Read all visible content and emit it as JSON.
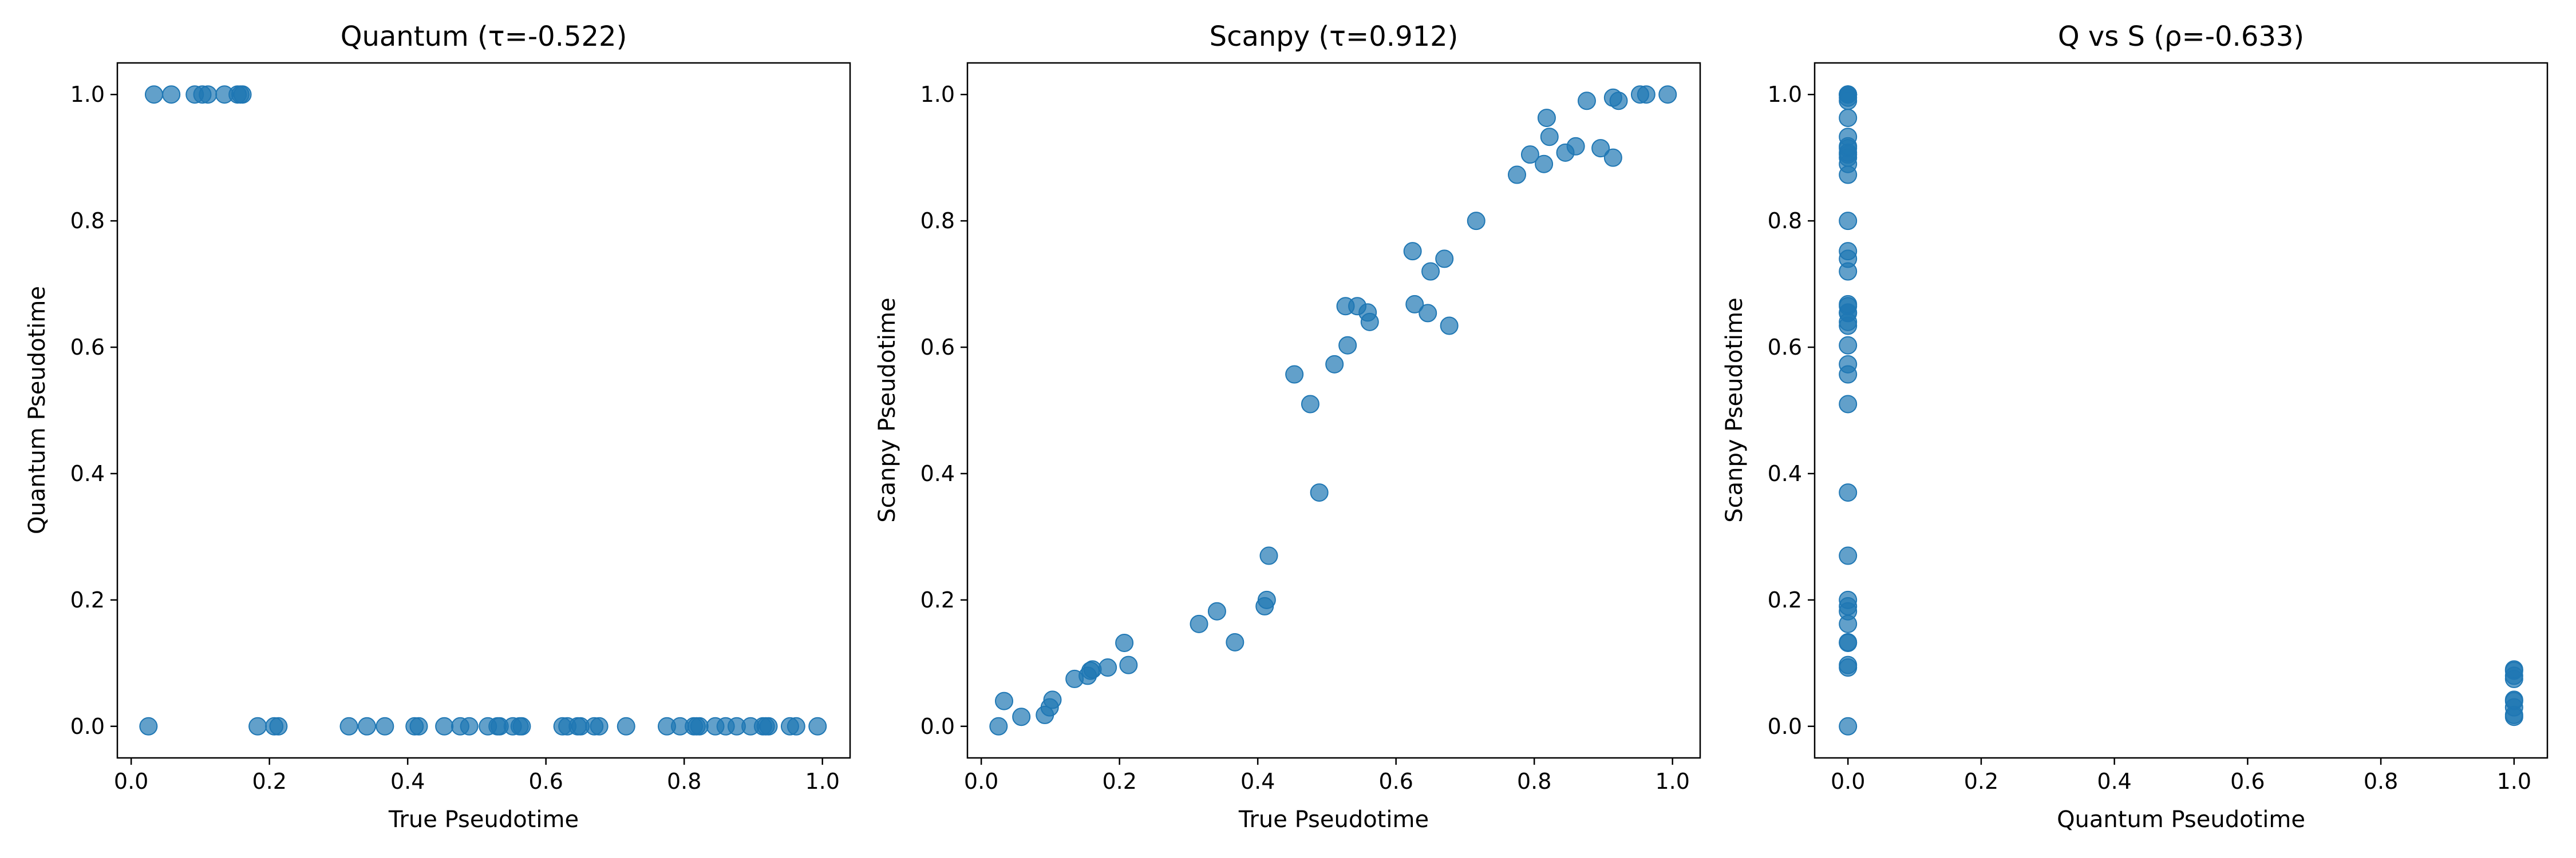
{
  "colors": {
    "point": "#1f77b4",
    "background": "#ffffff",
    "axis": "#000000"
  },
  "chart_data": [
    {
      "type": "scatter",
      "title": "Quantum (τ=-0.522)",
      "xlabel": "True Pseudotime",
      "ylabel": "Quantum Pseudotime",
      "xlim": [
        -0.02,
        1.04
      ],
      "ylim": [
        -0.05,
        1.05
      ],
      "xticks": [
        0.0,
        0.2,
        0.4,
        0.6,
        0.8,
        1.0
      ],
      "yticks": [
        0.0,
        0.2,
        0.4,
        0.6,
        0.8,
        1.0
      ],
      "xtick_labels": [
        "0.0",
        "0.2",
        "0.4",
        "0.6",
        "0.8",
        "1.0"
      ],
      "ytick_labels": [
        "0.0",
        "0.2",
        "0.4",
        "0.6",
        "0.8",
        "1.0"
      ],
      "grid": false,
      "points": [
        [
          0.033,
          1
        ],
        [
          0.058,
          1
        ],
        [
          0.092,
          1
        ],
        [
          0.103,
          1
        ],
        [
          0.111,
          1
        ],
        [
          0.135,
          1
        ],
        [
          0.154,
          1
        ],
        [
          0.158,
          1
        ],
        [
          0.161,
          1
        ],
        [
          0.025,
          0
        ],
        [
          0.183,
          0
        ],
        [
          0.207,
          0
        ],
        [
          0.213,
          0
        ],
        [
          0.315,
          0
        ],
        [
          0.341,
          0
        ],
        [
          0.367,
          0
        ],
        [
          0.41,
          0
        ],
        [
          0.416,
          0
        ],
        [
          0.453,
          0
        ],
        [
          0.476,
          0
        ],
        [
          0.489,
          0
        ],
        [
          0.516,
          0
        ],
        [
          0.53,
          0
        ],
        [
          0.533,
          0
        ],
        [
          0.552,
          0
        ],
        [
          0.562,
          0
        ],
        [
          0.565,
          0
        ],
        [
          0.624,
          0
        ],
        [
          0.631,
          0
        ],
        [
          0.646,
          0
        ],
        [
          0.65,
          0
        ],
        [
          0.67,
          0
        ],
        [
          0.677,
          0
        ],
        [
          0.716,
          0
        ],
        [
          0.775,
          0
        ],
        [
          0.794,
          0
        ],
        [
          0.814,
          0
        ],
        [
          0.818,
          0
        ],
        [
          0.822,
          0
        ],
        [
          0.845,
          0
        ],
        [
          0.86,
          0
        ],
        [
          0.876,
          0
        ],
        [
          0.896,
          0
        ],
        [
          0.914,
          0
        ],
        [
          0.918,
          0
        ],
        [
          0.922,
          0
        ],
        [
          0.953,
          0
        ],
        [
          0.962,
          0
        ],
        [
          0.993,
          0
        ]
      ]
    },
    {
      "type": "scatter",
      "title": "Scanpy (τ=0.912)",
      "xlabel": "True Pseudotime",
      "ylabel": "Scanpy Pseudotime",
      "xlim": [
        -0.02,
        1.04
      ],
      "ylim": [
        -0.05,
        1.05
      ],
      "xticks": [
        0.0,
        0.2,
        0.4,
        0.6,
        0.8,
        1.0
      ],
      "yticks": [
        0.0,
        0.2,
        0.4,
        0.6,
        0.8,
        1.0
      ],
      "xtick_labels": [
        "0.0",
        "0.2",
        "0.4",
        "0.6",
        "0.8",
        "1.0"
      ],
      "ytick_labels": [
        "0.0",
        "0.2",
        "0.4",
        "0.6",
        "0.8",
        "1.0"
      ],
      "grid": false,
      "points": [
        [
          0.025,
          0.0
        ],
        [
          0.033,
          0.04
        ],
        [
          0.058,
          0.015
        ],
        [
          0.092,
          0.018
        ],
        [
          0.099,
          0.03
        ],
        [
          0.103,
          0.042
        ],
        [
          0.135,
          0.075
        ],
        [
          0.154,
          0.08
        ],
        [
          0.158,
          0.088
        ],
        [
          0.161,
          0.09
        ],
        [
          0.183,
          0.093
        ],
        [
          0.207,
          0.132
        ],
        [
          0.213,
          0.097
        ],
        [
          0.315,
          0.162
        ],
        [
          0.341,
          0.182
        ],
        [
          0.367,
          0.133
        ],
        [
          0.41,
          0.19
        ],
        [
          0.413,
          0.2
        ],
        [
          0.416,
          0.27
        ],
        [
          0.453,
          0.557
        ],
        [
          0.476,
          0.51
        ],
        [
          0.489,
          0.37
        ],
        [
          0.511,
          0.573
        ],
        [
          0.527,
          0.665
        ],
        [
          0.53,
          0.603
        ],
        [
          0.544,
          0.665
        ],
        [
          0.559,
          0.655
        ],
        [
          0.562,
          0.64
        ],
        [
          0.624,
          0.752
        ],
        [
          0.627,
          0.668
        ],
        [
          0.646,
          0.654
        ],
        [
          0.65,
          0.72
        ],
        [
          0.67,
          0.74
        ],
        [
          0.677,
          0.634
        ],
        [
          0.716,
          0.8
        ],
        [
          0.775,
          0.873
        ],
        [
          0.794,
          0.905
        ],
        [
          0.814,
          0.89
        ],
        [
          0.818,
          0.963
        ],
        [
          0.822,
          0.933
        ],
        [
          0.845,
          0.908
        ],
        [
          0.86,
          0.918
        ],
        [
          0.876,
          0.99
        ],
        [
          0.896,
          0.915
        ],
        [
          0.914,
          0.995
        ],
        [
          0.914,
          0.9
        ],
        [
          0.922,
          0.99
        ],
        [
          0.953,
          1.0
        ],
        [
          0.962,
          1.0
        ],
        [
          0.993,
          1.0
        ]
      ]
    },
    {
      "type": "scatter",
      "title": "Q vs S (ρ=-0.633)",
      "xlabel": "Quantum Pseudotime",
      "ylabel": "Scanpy Pseudotime",
      "xlim": [
        -0.05,
        1.05
      ],
      "ylim": [
        -0.05,
        1.05
      ],
      "xticks": [
        0.0,
        0.2,
        0.4,
        0.6,
        0.8,
        1.0
      ],
      "yticks": [
        0.0,
        0.2,
        0.4,
        0.6,
        0.8,
        1.0
      ],
      "xtick_labels": [
        "0.0",
        "0.2",
        "0.4",
        "0.6",
        "0.8",
        "1.0"
      ],
      "ytick_labels": [
        "0.0",
        "0.2",
        "0.4",
        "0.6",
        "0.8",
        "1.0"
      ],
      "grid": false,
      "points": [
        [
          0,
          0.0
        ],
        [
          0,
          0.093
        ],
        [
          0,
          0.097
        ],
        [
          0,
          0.132
        ],
        [
          0,
          0.133
        ],
        [
          0,
          0.162
        ],
        [
          0,
          0.182
        ],
        [
          0,
          0.19
        ],
        [
          0,
          0.2
        ],
        [
          0,
          0.27
        ],
        [
          0,
          0.37
        ],
        [
          0,
          0.51
        ],
        [
          0,
          0.557
        ],
        [
          0,
          0.573
        ],
        [
          0,
          0.603
        ],
        [
          0,
          0.634
        ],
        [
          0,
          0.64
        ],
        [
          0,
          0.654
        ],
        [
          0,
          0.655
        ],
        [
          0,
          0.665
        ],
        [
          0,
          0.668
        ],
        [
          0,
          0.72
        ],
        [
          0,
          0.74
        ],
        [
          0,
          0.752
        ],
        [
          0,
          0.8
        ],
        [
          0,
          0.873
        ],
        [
          0,
          0.89
        ],
        [
          0,
          0.9
        ],
        [
          0,
          0.905
        ],
        [
          0,
          0.908
        ],
        [
          0,
          0.915
        ],
        [
          0,
          0.918
        ],
        [
          0,
          0.933
        ],
        [
          0,
          0.963
        ],
        [
          0,
          0.99
        ],
        [
          0,
          0.995
        ],
        [
          0,
          1.0
        ],
        [
          0,
          1.0
        ],
        [
          0,
          1.0
        ],
        [
          0,
          1.0
        ],
        [
          1,
          0.015
        ],
        [
          1,
          0.018
        ],
        [
          1,
          0.03
        ],
        [
          1,
          0.04
        ],
        [
          1,
          0.042
        ],
        [
          1,
          0.075
        ],
        [
          1,
          0.08
        ],
        [
          1,
          0.088
        ],
        [
          1,
          0.09
        ]
      ]
    }
  ]
}
